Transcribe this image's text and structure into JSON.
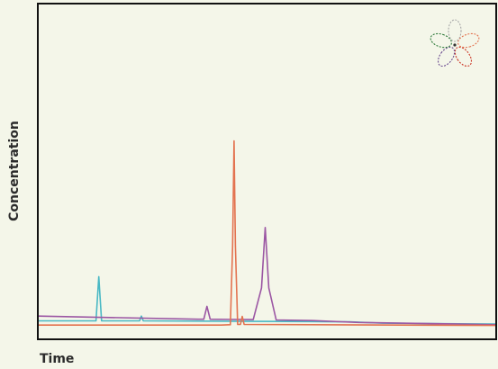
{
  "chart_data": {
    "type": "line",
    "title": "",
    "xlabel": "Time",
    "ylabel": "Concentration",
    "xlim": [
      0,
      100
    ],
    "ylim": [
      0,
      100
    ],
    "grid": false,
    "legend": "none",
    "series": [
      {
        "color": "#48b8c4",
        "points": [
          [
            0,
            1.8
          ],
          [
            12.7,
            1.8
          ],
          [
            13.3,
            15.5
          ],
          [
            13.9,
            1.8
          ],
          [
            22.2,
            1.8
          ],
          [
            22.6,
            3.3
          ],
          [
            23.0,
            1.8
          ],
          [
            60,
            1.6
          ],
          [
            68,
            1.5
          ],
          [
            75,
            1.1
          ],
          [
            100,
            0.8
          ]
        ]
      },
      {
        "color": "#9b56a3",
        "points": [
          [
            0,
            3.3
          ],
          [
            35,
            2.3
          ],
          [
            36.2,
            2.3
          ],
          [
            36.9,
            6.3
          ],
          [
            37.6,
            2.3
          ],
          [
            47.0,
            2.2
          ],
          [
            48.8,
            12.0
          ],
          [
            49.6,
            30.7
          ],
          [
            50.4,
            12.0
          ],
          [
            52.0,
            2.1
          ],
          [
            60,
            1.9
          ],
          [
            70,
            1.3
          ],
          [
            100,
            0.6
          ]
        ]
      },
      {
        "color": "#e37350",
        "points": [
          [
            0,
            0.5
          ],
          [
            40,
            0.5
          ],
          [
            42.0,
            0.6
          ],
          [
            42.5,
            25.0
          ],
          [
            42.8,
            57.5
          ],
          [
            43.1,
            25.0
          ],
          [
            43.6,
            0.7
          ],
          [
            44.2,
            0.7
          ],
          [
            44.6,
            3.2
          ],
          [
            45.0,
            0.7
          ],
          [
            100,
            0.4
          ]
        ]
      }
    ]
  }
}
